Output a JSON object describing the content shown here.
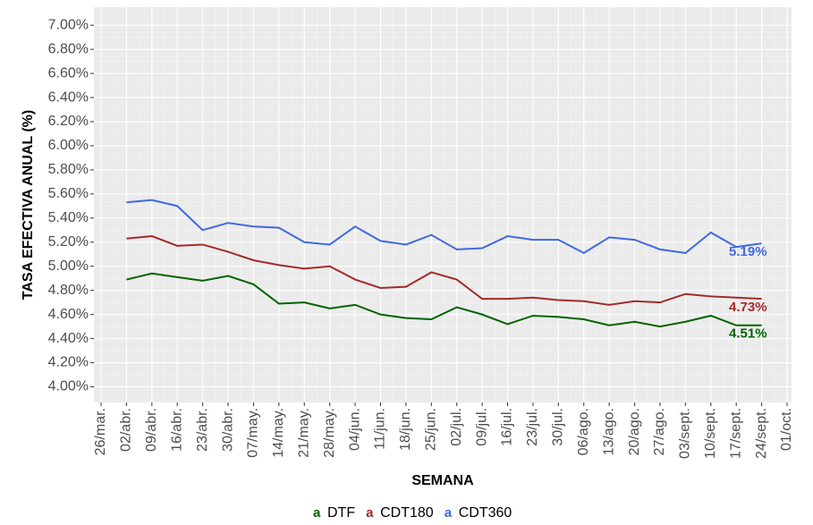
{
  "chart_data": {
    "type": "line",
    "x_label": "SEMANA",
    "y_label": "TASA EFECTIVA ANUAL (%)",
    "categories": [
      "26/mar.",
      "02/abr.",
      "09/abr.",
      "16/abr.",
      "23/abr.",
      "30/abr.",
      "07/may.",
      "14/may.",
      "21/may.",
      "28/may.",
      "04/jun.",
      "11/jun.",
      "18/jun.",
      "25/jun.",
      "02/jul.",
      "09/jul.",
      "16/jul.",
      "23/jul.",
      "30/jul.",
      "06/ago.",
      "13/ago.",
      "20/ago.",
      "27/ago.",
      "03/sept.",
      "10/sept.",
      "17/sept.",
      "24/sept.",
      "01/oct."
    ],
    "series": [
      {
        "name": "DTF",
        "color": "#006400",
        "values": [
          null,
          4.89,
          4.94,
          4.91,
          4.88,
          4.92,
          4.85,
          4.69,
          4.7,
          4.65,
          4.68,
          4.6,
          4.57,
          4.56,
          4.66,
          4.6,
          4.52,
          4.59,
          4.58,
          4.56,
          4.51,
          4.54,
          4.5,
          4.54,
          4.59,
          4.51,
          4.51,
          null
        ],
        "value_labels": [
          null,
          null,
          null,
          null,
          null,
          null,
          null,
          null,
          null,
          null,
          null,
          null,
          null,
          null,
          null,
          null,
          null,
          null,
          null,
          null,
          null,
          null,
          null,
          null,
          null,
          null,
          "4.51%",
          null
        ]
      },
      {
        "name": "CDT180",
        "color": "#a52a2a",
        "values": [
          null,
          5.23,
          5.25,
          5.17,
          5.18,
          5.12,
          5.05,
          5.01,
          4.98,
          5.0,
          4.89,
          4.82,
          4.83,
          4.95,
          4.89,
          4.73,
          4.73,
          4.74,
          4.72,
          4.71,
          4.68,
          4.71,
          4.7,
          4.77,
          4.75,
          4.74,
          4.73,
          null
        ],
        "value_labels": [
          null,
          null,
          null,
          null,
          null,
          null,
          null,
          null,
          null,
          null,
          null,
          null,
          null,
          null,
          null,
          null,
          null,
          null,
          null,
          null,
          null,
          null,
          null,
          null,
          null,
          null,
          "4.73%",
          null
        ]
      },
      {
        "name": "CDT360",
        "color": "#4169e1",
        "values": [
          null,
          5.53,
          5.55,
          5.5,
          5.3,
          5.36,
          5.33,
          5.32,
          5.2,
          5.18,
          5.33,
          5.21,
          5.18,
          5.26,
          5.14,
          5.15,
          5.25,
          5.22,
          5.22,
          5.11,
          5.24,
          5.22,
          5.14,
          5.11,
          5.28,
          5.16,
          5.19,
          null
        ],
        "value_labels": [
          null,
          null,
          null,
          null,
          null,
          null,
          null,
          null,
          null,
          null,
          null,
          null,
          null,
          null,
          null,
          null,
          null,
          null,
          null,
          null,
          null,
          null,
          null,
          null,
          null,
          null,
          "5.19%",
          null
        ]
      }
    ],
    "ylim": [
      3.87,
      7.15
    ],
    "yticks": [
      {
        "value": 4.0,
        "label": "4.00%"
      },
      {
        "value": 4.2,
        "label": "4.20%"
      },
      {
        "value": 4.4,
        "label": "4.40%"
      },
      {
        "value": 4.6,
        "label": "4.60%"
      },
      {
        "value": 4.8,
        "label": "4.80%"
      },
      {
        "value": 5.0,
        "label": "5.00%"
      },
      {
        "value": 5.2,
        "label": "5.20%"
      },
      {
        "value": 5.4,
        "label": "5.40%"
      },
      {
        "value": 5.6,
        "label": "5.60%"
      },
      {
        "value": 5.8,
        "label": "5.80%"
      },
      {
        "value": 6.0,
        "label": "6.00%"
      },
      {
        "value": 6.2,
        "label": "6.20%"
      },
      {
        "value": 6.4,
        "label": "6.40%"
      },
      {
        "value": 6.6,
        "label": "6.60%"
      },
      {
        "value": 6.8,
        "label": "6.80%"
      },
      {
        "value": 7.0,
        "label": "7.00%"
      }
    ],
    "grid": true,
    "legend": "bottom"
  }
}
